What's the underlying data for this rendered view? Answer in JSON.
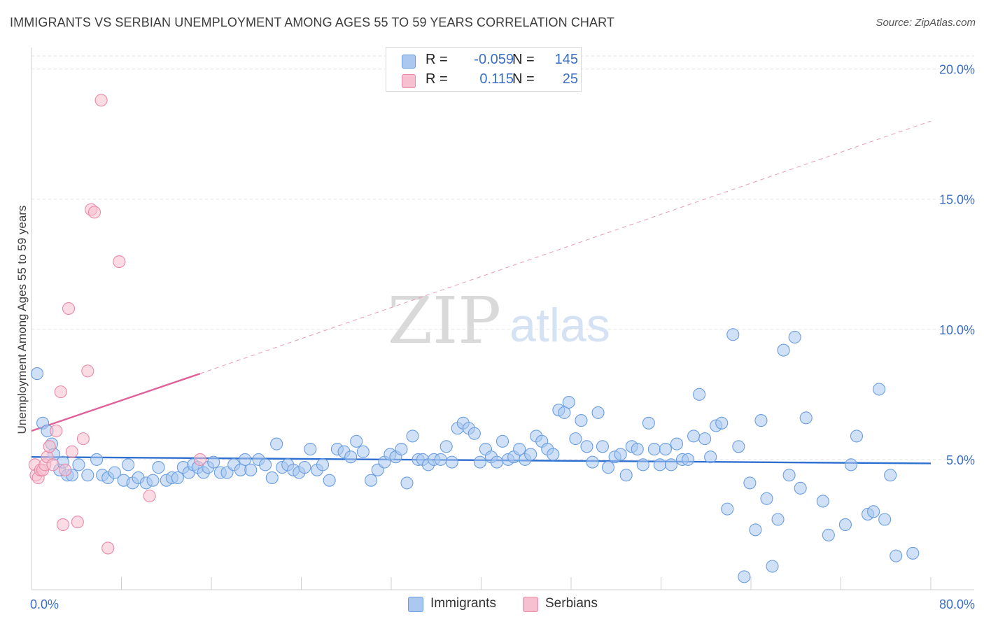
{
  "header": {
    "title": "IMMIGRANTS VS SERBIAN UNEMPLOYMENT AMONG AGES 55 TO 59 YEARS CORRELATION CHART",
    "source": "Source: ZipAtlas.com"
  },
  "watermark": {
    "zip": "ZIP",
    "atlas": "atlas"
  },
  "legend": {
    "rows": [
      {
        "label": "R =",
        "r": "-0.059",
        "n_label": "N =",
        "n": "145",
        "color": "#aac8f0",
        "border": "#6a9ee0"
      },
      {
        "label": "R =",
        "r": "0.115",
        "n_label": "N =",
        "n": "25",
        "color": "#f7c0d0",
        "border": "#e88aa8"
      }
    ]
  },
  "bottom_legend": [
    {
      "label": "Immigrants",
      "color": "#aac8f0",
      "border": "#6a9ee0"
    },
    {
      "label": "Serbians",
      "color": "#f7c0d0",
      "border": "#e88aa8"
    }
  ],
  "chart_data": {
    "type": "scatter",
    "ylabel": "Unemployment Among Ages 55 to 59 years",
    "xlim": [
      0,
      80
    ],
    "ylim": [
      0,
      20.5
    ],
    "x_tick_labels": [
      {
        "value": 0,
        "label": "0.0%"
      },
      {
        "value": 80,
        "label": "80.0%"
      }
    ],
    "y_tick_labels": [
      {
        "value": 5,
        "label": "5.0%"
      },
      {
        "value": 10,
        "label": "10.0%"
      },
      {
        "value": 15,
        "label": "15.0%"
      },
      {
        "value": 20,
        "label": "20.0%"
      }
    ],
    "series": [
      {
        "name": "Immigrants",
        "color": "#aac8f0",
        "stroke": "#6a9ee0",
        "trend": {
          "x": [
            0,
            80
          ],
          "y": [
            5.1,
            4.85
          ],
          "color": "#2f6fd0",
          "style": "solid"
        },
        "points": [
          [
            0.5,
            8.3
          ],
          [
            1.0,
            6.4
          ],
          [
            1.4,
            6.1
          ],
          [
            1.8,
            5.6
          ],
          [
            2.0,
            5.2
          ],
          [
            2.5,
            4.6
          ],
          [
            2.8,
            4.9
          ],
          [
            3.2,
            4.4
          ],
          [
            3.6,
            4.4
          ],
          [
            4.2,
            4.8
          ],
          [
            5.0,
            4.4
          ],
          [
            5.8,
            5.0
          ],
          [
            6.3,
            4.4
          ],
          [
            6.8,
            4.3
          ],
          [
            7.4,
            4.5
          ],
          [
            8.2,
            4.2
          ],
          [
            8.6,
            4.8
          ],
          [
            9.0,
            4.1
          ],
          [
            9.5,
            4.3
          ],
          [
            10.2,
            4.1
          ],
          [
            10.8,
            4.2
          ],
          [
            11.3,
            4.7
          ],
          [
            12.0,
            4.2
          ],
          [
            12.5,
            4.3
          ],
          [
            13.0,
            4.3
          ],
          [
            13.5,
            4.7
          ],
          [
            14.0,
            4.5
          ],
          [
            14.4,
            4.8
          ],
          [
            14.8,
            4.7
          ],
          [
            15.3,
            4.5
          ],
          [
            15.7,
            4.7
          ],
          [
            16.2,
            4.9
          ],
          [
            16.8,
            4.5
          ],
          [
            17.4,
            4.5
          ],
          [
            18.0,
            4.8
          ],
          [
            18.6,
            4.6
          ],
          [
            19.0,
            5.0
          ],
          [
            19.5,
            4.6
          ],
          [
            20.2,
            5.0
          ],
          [
            20.8,
            4.8
          ],
          [
            21.4,
            4.3
          ],
          [
            21.8,
            5.6
          ],
          [
            22.3,
            4.7
          ],
          [
            22.8,
            4.8
          ],
          [
            23.3,
            4.6
          ],
          [
            23.8,
            4.5
          ],
          [
            24.3,
            4.7
          ],
          [
            24.8,
            5.4
          ],
          [
            25.4,
            4.6
          ],
          [
            25.9,
            4.8
          ],
          [
            26.5,
            4.2
          ],
          [
            27.2,
            5.4
          ],
          [
            27.8,
            5.3
          ],
          [
            28.4,
            5.1
          ],
          [
            28.9,
            5.7
          ],
          [
            29.5,
            5.3
          ],
          [
            30.2,
            4.2
          ],
          [
            30.8,
            4.6
          ],
          [
            31.4,
            4.9
          ],
          [
            31.9,
            5.2
          ],
          [
            32.4,
            5.1
          ],
          [
            32.9,
            5.4
          ],
          [
            33.4,
            4.1
          ],
          [
            33.9,
            5.9
          ],
          [
            34.4,
            5.0
          ],
          [
            34.8,
            5.0
          ],
          [
            35.3,
            4.8
          ],
          [
            35.8,
            5.0
          ],
          [
            36.4,
            5.0
          ],
          [
            36.9,
            5.5
          ],
          [
            37.4,
            4.9
          ],
          [
            37.9,
            6.2
          ],
          [
            38.4,
            6.4
          ],
          [
            38.9,
            6.2
          ],
          [
            39.4,
            6.0
          ],
          [
            39.9,
            4.9
          ],
          [
            40.4,
            5.4
          ],
          [
            40.9,
            5.1
          ],
          [
            41.4,
            4.9
          ],
          [
            41.9,
            5.7
          ],
          [
            42.4,
            5.0
          ],
          [
            42.9,
            5.1
          ],
          [
            43.4,
            5.4
          ],
          [
            43.9,
            5.0
          ],
          [
            44.4,
            5.2
          ],
          [
            44.9,
            5.9
          ],
          [
            45.4,
            5.7
          ],
          [
            45.9,
            5.4
          ],
          [
            46.4,
            5.2
          ],
          [
            46.9,
            6.9
          ],
          [
            47.4,
            6.8
          ],
          [
            47.8,
            7.2
          ],
          [
            48.4,
            5.8
          ],
          [
            48.9,
            6.5
          ],
          [
            49.4,
            5.5
          ],
          [
            49.9,
            4.9
          ],
          [
            50.4,
            6.8
          ],
          [
            50.8,
            5.5
          ],
          [
            51.3,
            4.7
          ],
          [
            51.9,
            5.1
          ],
          [
            52.4,
            5.2
          ],
          [
            52.9,
            4.4
          ],
          [
            53.4,
            5.5
          ],
          [
            53.9,
            5.4
          ],
          [
            54.4,
            4.8
          ],
          [
            54.9,
            6.4
          ],
          [
            55.4,
            5.4
          ],
          [
            55.9,
            4.8
          ],
          [
            56.4,
            5.4
          ],
          [
            56.9,
            4.8
          ],
          [
            57.4,
            5.6
          ],
          [
            57.9,
            5.0
          ],
          [
            58.4,
            5.0
          ],
          [
            58.9,
            5.9
          ],
          [
            59.4,
            7.5
          ],
          [
            59.9,
            5.8
          ],
          [
            60.4,
            5.1
          ],
          [
            60.9,
            6.3
          ],
          [
            61.4,
            6.4
          ],
          [
            61.9,
            3.1
          ],
          [
            62.4,
            9.8
          ],
          [
            62.9,
            5.5
          ],
          [
            63.4,
            0.5
          ],
          [
            63.9,
            4.1
          ],
          [
            64.4,
            2.3
          ],
          [
            64.9,
            6.5
          ],
          [
            65.4,
            3.5
          ],
          [
            65.9,
            0.9
          ],
          [
            66.4,
            2.7
          ],
          [
            66.9,
            9.2
          ],
          [
            67.4,
            4.4
          ],
          [
            67.9,
            9.7
          ],
          [
            68.4,
            3.9
          ],
          [
            68.9,
            6.6
          ],
          [
            70.4,
            3.4
          ],
          [
            70.9,
            2.1
          ],
          [
            72.4,
            2.5
          ],
          [
            72.9,
            4.8
          ],
          [
            73.4,
            5.9
          ],
          [
            74.4,
            2.9
          ],
          [
            74.9,
            3.0
          ],
          [
            75.4,
            7.7
          ],
          [
            75.9,
            2.7
          ],
          [
            76.4,
            4.4
          ],
          [
            76.9,
            1.3
          ],
          [
            78.4,
            1.4
          ]
        ]
      },
      {
        "name": "Serbians",
        "color": "#f7c0d0",
        "stroke": "#e88aa8",
        "trend": {
          "x": [
            0,
            15
          ],
          "y": [
            6.1,
            8.3
          ],
          "color": "#e0609a",
          "style": "solid"
        },
        "trend_extension": {
          "x": [
            15,
            80
          ],
          "y": [
            8.3,
            18.0
          ],
          "color": "#e89ab4",
          "style": "dashed"
        },
        "points": [
          [
            0.3,
            4.8
          ],
          [
            0.4,
            4.4
          ],
          [
            0.6,
            4.3
          ],
          [
            0.8,
            4.6
          ],
          [
            1.0,
            4.6
          ],
          [
            1.2,
            4.8
          ],
          [
            1.4,
            5.1
          ],
          [
            1.6,
            5.5
          ],
          [
            1.9,
            4.8
          ],
          [
            2.2,
            6.1
          ],
          [
            2.6,
            7.6
          ],
          [
            2.8,
            2.5
          ],
          [
            3.0,
            4.6
          ],
          [
            3.3,
            10.8
          ],
          [
            3.6,
            5.3
          ],
          [
            4.1,
            2.6
          ],
          [
            4.6,
            5.8
          ],
          [
            5.0,
            8.4
          ],
          [
            5.3,
            14.6
          ],
          [
            5.6,
            14.5
          ],
          [
            6.2,
            18.8
          ],
          [
            6.8,
            1.6
          ],
          [
            7.8,
            12.6
          ],
          [
            10.5,
            3.6
          ],
          [
            15.0,
            5.0
          ]
        ]
      }
    ]
  }
}
